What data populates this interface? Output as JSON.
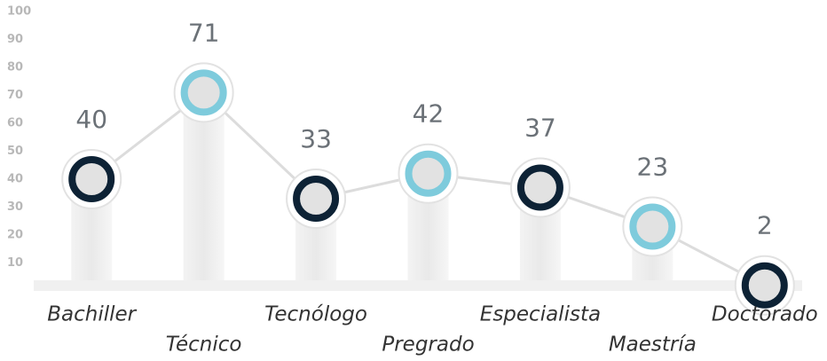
{
  "chart_data": {
    "type": "line",
    "categories": [
      "Bachiller",
      "Técnico",
      "Tecnólogo",
      "Pregrado",
      "Especialista",
      "Maestría",
      "Doctorado"
    ],
    "values": [
      40,
      71,
      33,
      42,
      37,
      23,
      2
    ],
    "colors": [
      "#0d2235",
      "#7ecbdc",
      "#0d2235",
      "#7ecbdc",
      "#0d2235",
      "#7ecbdc",
      "#0d2235"
    ],
    "ylim": [
      0,
      100
    ],
    "yticks": [
      10,
      20,
      30,
      40,
      50,
      60,
      70,
      80,
      90,
      100
    ]
  }
}
